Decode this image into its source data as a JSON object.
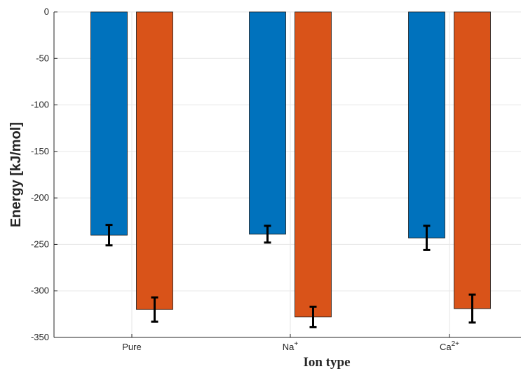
{
  "chart_data": {
    "type": "bar",
    "title": "",
    "xlabel": "Ion type",
    "ylabel": "Energy [kJ/mol]",
    "categories": [
      {
        "base": "Pure",
        "sup": ""
      },
      {
        "base": "Na",
        "sup": "+"
      },
      {
        "base": "Ca",
        "sup": "2+"
      }
    ],
    "series": [
      {
        "color": "#0072BD",
        "values": [
          -240,
          -239,
          -243
        ],
        "errors": [
          11,
          9,
          13
        ]
      },
      {
        "color": "#D95319",
        "values": [
          -320,
          -328,
          -319
        ],
        "errors": [
          13,
          11,
          15
        ]
      }
    ],
    "ylim": [
      -350,
      0
    ],
    "yticks": [
      0,
      -50,
      -100,
      -150,
      -200,
      -250,
      -300,
      -350
    ],
    "grid": true,
    "legend": "none"
  }
}
